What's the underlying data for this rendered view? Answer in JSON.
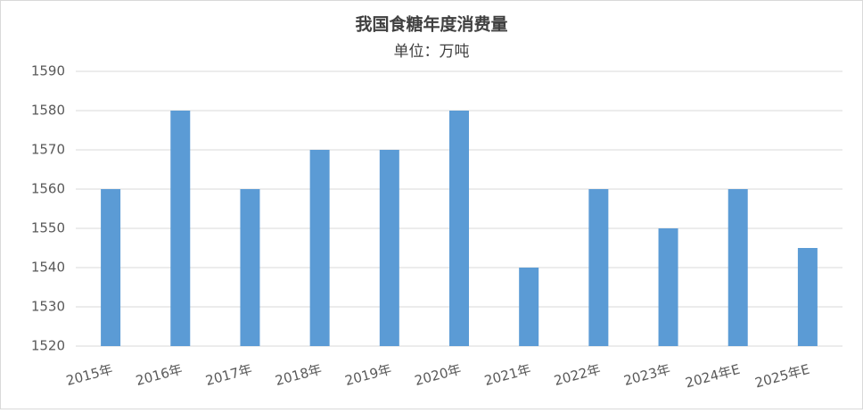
{
  "chart_data": {
    "type": "bar",
    "title": "我国食糖年度消费量",
    "subtitle": "单位：万吨",
    "categories": [
      "2015年",
      "2016年",
      "2017年",
      "2018年",
      "2019年",
      "2020年",
      "2021年",
      "2022年",
      "2023年",
      "2024年E",
      "2025年E"
    ],
    "values": [
      1560,
      1580,
      1560,
      1570,
      1570,
      1580,
      1540,
      1560,
      1550,
      1560,
      1545
    ],
    "color": "#5b9bd5",
    "ylim": [
      1520,
      1590
    ],
    "yticks": [
      1520,
      1530,
      1540,
      1550,
      1560,
      1570,
      1580,
      1590
    ],
    "grid": true
  }
}
